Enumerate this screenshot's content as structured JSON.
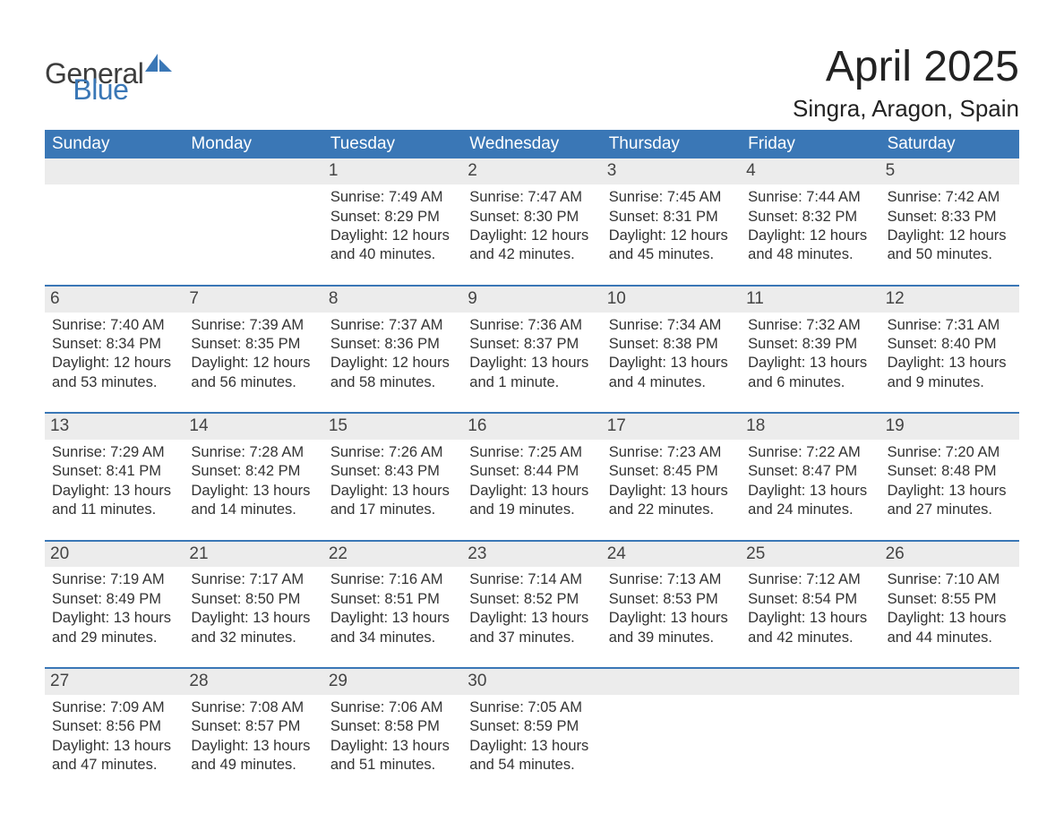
{
  "logo": {
    "word1": "General",
    "word2": "Blue",
    "accent_color": "#3a77b6",
    "text_color": "#3d3d3d"
  },
  "title": "April 2025",
  "location": "Singra, Aragon, Spain",
  "colors": {
    "header_bg": "#3a77b6",
    "header_text": "#ffffff",
    "daynum_bg": "#ececec",
    "border": "#3a77b6",
    "body_text": "#333333",
    "page_bg": "#ffffff"
  },
  "weekdays": [
    "Sunday",
    "Monday",
    "Tuesday",
    "Wednesday",
    "Thursday",
    "Friday",
    "Saturday"
  ],
  "weeks": [
    [
      null,
      null,
      {
        "n": "1",
        "sunrise": "Sunrise: 7:49 AM",
        "sunset": "Sunset: 8:29 PM",
        "day1": "Daylight: 12 hours",
        "day2": "and 40 minutes."
      },
      {
        "n": "2",
        "sunrise": "Sunrise: 7:47 AM",
        "sunset": "Sunset: 8:30 PM",
        "day1": "Daylight: 12 hours",
        "day2": "and 42 minutes."
      },
      {
        "n": "3",
        "sunrise": "Sunrise: 7:45 AM",
        "sunset": "Sunset: 8:31 PM",
        "day1": "Daylight: 12 hours",
        "day2": "and 45 minutes."
      },
      {
        "n": "4",
        "sunrise": "Sunrise: 7:44 AM",
        "sunset": "Sunset: 8:32 PM",
        "day1": "Daylight: 12 hours",
        "day2": "and 48 minutes."
      },
      {
        "n": "5",
        "sunrise": "Sunrise: 7:42 AM",
        "sunset": "Sunset: 8:33 PM",
        "day1": "Daylight: 12 hours",
        "day2": "and 50 minutes."
      }
    ],
    [
      {
        "n": "6",
        "sunrise": "Sunrise: 7:40 AM",
        "sunset": "Sunset: 8:34 PM",
        "day1": "Daylight: 12 hours",
        "day2": "and 53 minutes."
      },
      {
        "n": "7",
        "sunrise": "Sunrise: 7:39 AM",
        "sunset": "Sunset: 8:35 PM",
        "day1": "Daylight: 12 hours",
        "day2": "and 56 minutes."
      },
      {
        "n": "8",
        "sunrise": "Sunrise: 7:37 AM",
        "sunset": "Sunset: 8:36 PM",
        "day1": "Daylight: 12 hours",
        "day2": "and 58 minutes."
      },
      {
        "n": "9",
        "sunrise": "Sunrise: 7:36 AM",
        "sunset": "Sunset: 8:37 PM",
        "day1": "Daylight: 13 hours",
        "day2": "and 1 minute."
      },
      {
        "n": "10",
        "sunrise": "Sunrise: 7:34 AM",
        "sunset": "Sunset: 8:38 PM",
        "day1": "Daylight: 13 hours",
        "day2": "and 4 minutes."
      },
      {
        "n": "11",
        "sunrise": "Sunrise: 7:32 AM",
        "sunset": "Sunset: 8:39 PM",
        "day1": "Daylight: 13 hours",
        "day2": "and 6 minutes."
      },
      {
        "n": "12",
        "sunrise": "Sunrise: 7:31 AM",
        "sunset": "Sunset: 8:40 PM",
        "day1": "Daylight: 13 hours",
        "day2": "and 9 minutes."
      }
    ],
    [
      {
        "n": "13",
        "sunrise": "Sunrise: 7:29 AM",
        "sunset": "Sunset: 8:41 PM",
        "day1": "Daylight: 13 hours",
        "day2": "and 11 minutes."
      },
      {
        "n": "14",
        "sunrise": "Sunrise: 7:28 AM",
        "sunset": "Sunset: 8:42 PM",
        "day1": "Daylight: 13 hours",
        "day2": "and 14 minutes."
      },
      {
        "n": "15",
        "sunrise": "Sunrise: 7:26 AM",
        "sunset": "Sunset: 8:43 PM",
        "day1": "Daylight: 13 hours",
        "day2": "and 17 minutes."
      },
      {
        "n": "16",
        "sunrise": "Sunrise: 7:25 AM",
        "sunset": "Sunset: 8:44 PM",
        "day1": "Daylight: 13 hours",
        "day2": "and 19 minutes."
      },
      {
        "n": "17",
        "sunrise": "Sunrise: 7:23 AM",
        "sunset": "Sunset: 8:45 PM",
        "day1": "Daylight: 13 hours",
        "day2": "and 22 minutes."
      },
      {
        "n": "18",
        "sunrise": "Sunrise: 7:22 AM",
        "sunset": "Sunset: 8:47 PM",
        "day1": "Daylight: 13 hours",
        "day2": "and 24 minutes."
      },
      {
        "n": "19",
        "sunrise": "Sunrise: 7:20 AM",
        "sunset": "Sunset: 8:48 PM",
        "day1": "Daylight: 13 hours",
        "day2": "and 27 minutes."
      }
    ],
    [
      {
        "n": "20",
        "sunrise": "Sunrise: 7:19 AM",
        "sunset": "Sunset: 8:49 PM",
        "day1": "Daylight: 13 hours",
        "day2": "and 29 minutes."
      },
      {
        "n": "21",
        "sunrise": "Sunrise: 7:17 AM",
        "sunset": "Sunset: 8:50 PM",
        "day1": "Daylight: 13 hours",
        "day2": "and 32 minutes."
      },
      {
        "n": "22",
        "sunrise": "Sunrise: 7:16 AM",
        "sunset": "Sunset: 8:51 PM",
        "day1": "Daylight: 13 hours",
        "day2": "and 34 minutes."
      },
      {
        "n": "23",
        "sunrise": "Sunrise: 7:14 AM",
        "sunset": "Sunset: 8:52 PM",
        "day1": "Daylight: 13 hours",
        "day2": "and 37 minutes."
      },
      {
        "n": "24",
        "sunrise": "Sunrise: 7:13 AM",
        "sunset": "Sunset: 8:53 PM",
        "day1": "Daylight: 13 hours",
        "day2": "and 39 minutes."
      },
      {
        "n": "25",
        "sunrise": "Sunrise: 7:12 AM",
        "sunset": "Sunset: 8:54 PM",
        "day1": "Daylight: 13 hours",
        "day2": "and 42 minutes."
      },
      {
        "n": "26",
        "sunrise": "Sunrise: 7:10 AM",
        "sunset": "Sunset: 8:55 PM",
        "day1": "Daylight: 13 hours",
        "day2": "and 44 minutes."
      }
    ],
    [
      {
        "n": "27",
        "sunrise": "Sunrise: 7:09 AM",
        "sunset": "Sunset: 8:56 PM",
        "day1": "Daylight: 13 hours",
        "day2": "and 47 minutes."
      },
      {
        "n": "28",
        "sunrise": "Sunrise: 7:08 AM",
        "sunset": "Sunset: 8:57 PM",
        "day1": "Daylight: 13 hours",
        "day2": "and 49 minutes."
      },
      {
        "n": "29",
        "sunrise": "Sunrise: 7:06 AM",
        "sunset": "Sunset: 8:58 PM",
        "day1": "Daylight: 13 hours",
        "day2": "and 51 minutes."
      },
      {
        "n": "30",
        "sunrise": "Sunrise: 7:05 AM",
        "sunset": "Sunset: 8:59 PM",
        "day1": "Daylight: 13 hours",
        "day2": "and 54 minutes."
      },
      null,
      null,
      null
    ]
  ]
}
